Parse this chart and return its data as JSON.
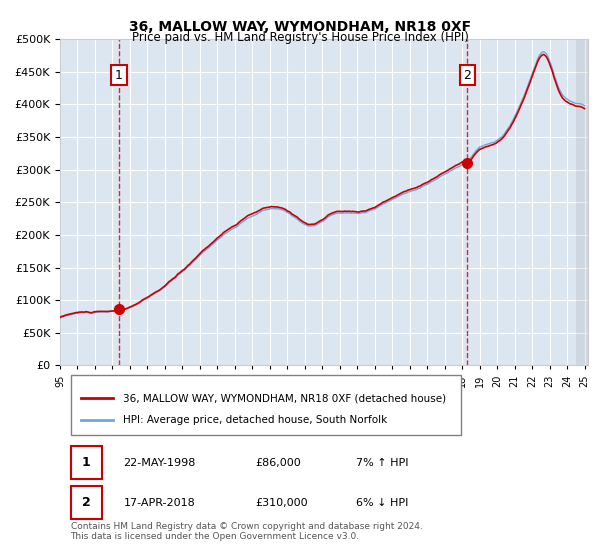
{
  "title": "36, MALLOW WAY, WYMONDHAM, NR18 0XF",
  "subtitle": "Price paid vs. HM Land Registry's House Price Index (HPI)",
  "legend_line1": "36, MALLOW WAY, WYMONDHAM, NR18 0XF (detached house)",
  "legend_line2": "HPI: Average price, detached house, South Norfolk",
  "annotation1_date": "22-MAY-1998",
  "annotation1_price": "£86,000",
  "annotation1_hpi": "7% ↑ HPI",
  "annotation2_date": "17-APR-2018",
  "annotation2_price": "£310,000",
  "annotation2_hpi": "6% ↓ HPI",
  "footnote": "Contains HM Land Registry data © Crown copyright and database right 2024.\nThis data is licensed under the Open Government Licence v3.0.",
  "sale1_year": 1998.38,
  "sale1_value": 86000,
  "sale2_year": 2018.29,
  "sale2_value": 310000,
  "hpi_line_color": "#6fa8dc",
  "price_line_color": "#cc0000",
  "dashed_line_color": "#cc0000",
  "background_color": "#dce6f1",
  "plot_bg_color": "#dce6f1",
  "ylim_max": 500000,
  "ylim_min": 0
}
